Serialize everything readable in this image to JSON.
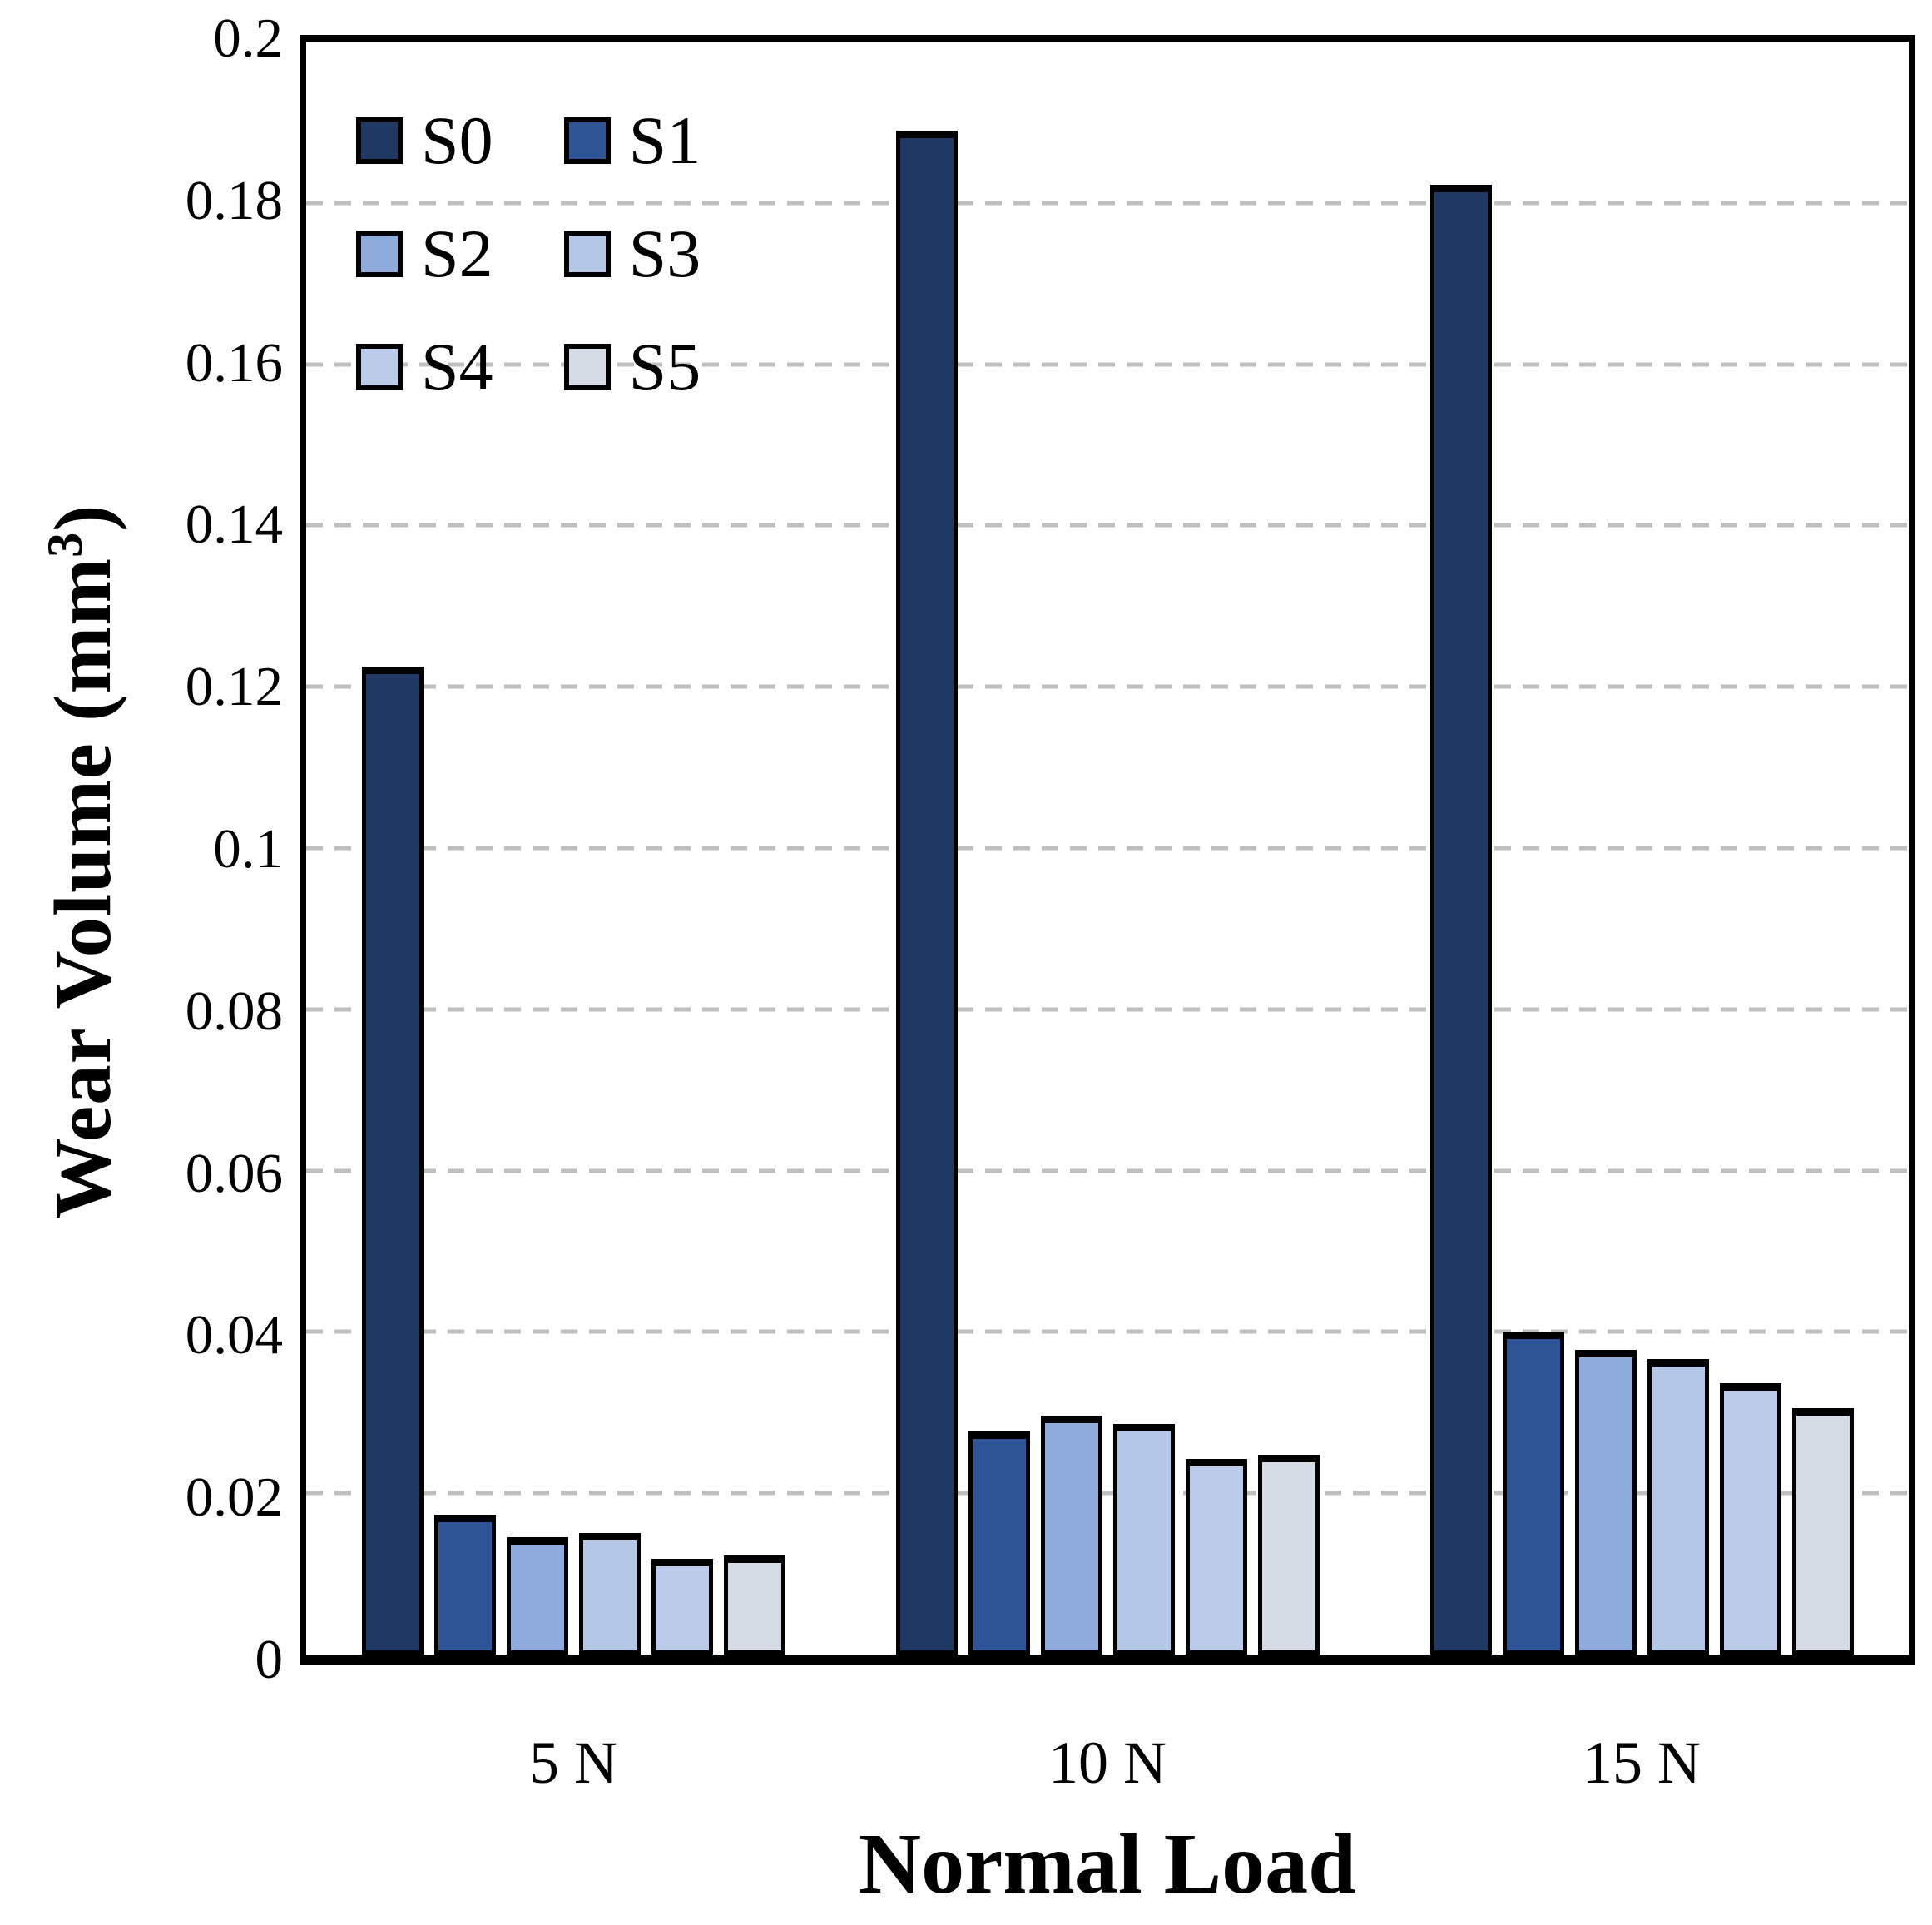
{
  "chart_data": {
    "type": "bar",
    "title": "",
    "xlabel": "Normal Load",
    "ylabel": "Wear Volume (mm³)",
    "ylabel_parts": {
      "prefix": "Wear Volume (mm",
      "sup": "3",
      "suffix": ")"
    },
    "categories": [
      "5 N",
      "10 N",
      "15 N"
    ],
    "series": [
      {
        "name": "S0",
        "color": "#1F3864",
        "values": [
          0.1225,
          0.189,
          0.1822
        ]
      },
      {
        "name": "S1",
        "color": "#2F5597",
        "values": [
          0.0173,
          0.0277,
          0.04
        ]
      },
      {
        "name": "S2",
        "color": "#8FAADC",
        "values": [
          0.0146,
          0.0296,
          0.0378
        ]
      },
      {
        "name": "S3",
        "color": "#B4C7E7",
        "values": [
          0.0151,
          0.0286,
          0.0366
        ]
      },
      {
        "name": "S4",
        "color": "#BCCBE9",
        "values": [
          0.0119,
          0.0243,
          0.0336
        ]
      },
      {
        "name": "S5",
        "color": "#D6DCE5",
        "values": [
          0.0123,
          0.0248,
          0.0306
        ]
      }
    ],
    "ylim": [
      0,
      0.2
    ],
    "ytick_step": 0.02,
    "ytick_labels": [
      "0.2",
      "0.18",
      "0.16",
      "0.14",
      "0.12",
      "0.1",
      "0.08",
      "0.06",
      "0.04",
      "0.02",
      "0"
    ],
    "grid": "horizontal-dashed",
    "legend_position": "top-left-inside",
    "legend_layout": "2-columns",
    "legend_order": [
      "S0",
      "S1",
      "S2",
      "S3",
      "S4",
      "S5"
    ]
  },
  "colors": {
    "background": "#FFFFFF",
    "axis_frame": "#000000",
    "bar_outline": "#000000",
    "gridline": "#BFBFBF",
    "text": "#000000"
  }
}
